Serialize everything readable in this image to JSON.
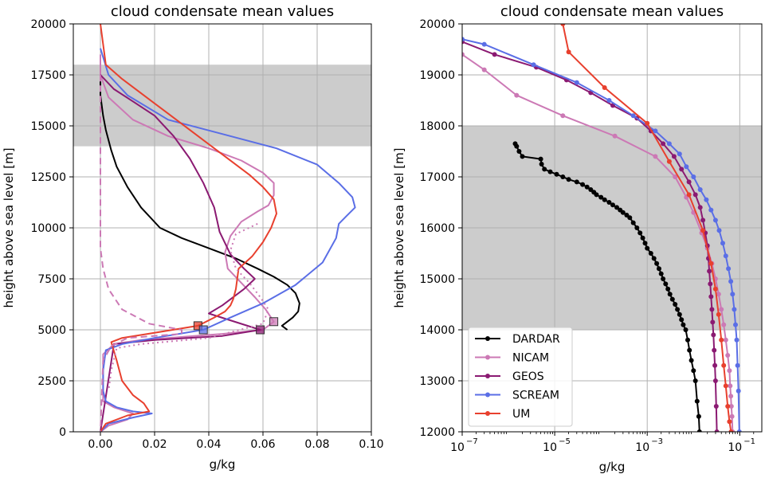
{
  "charts": [
    {
      "title": "cloud condensate mean values",
      "xlabel": "g/kg",
      "ylabel": "height above sea level [m]",
      "xlim": [
        -0.01,
        0.1
      ],
      "ylim": [
        0,
        20000
      ],
      "xticks": [
        "0.00",
        "0.02",
        "0.04",
        "0.06",
        "0.08",
        "0.10"
      ],
      "yticks": [
        "0",
        "2500",
        "5000",
        "7500",
        "10000",
        "12500",
        "15000",
        "17500",
        "20000"
      ],
      "shaded_band": [
        14000,
        18000
      ]
    },
    {
      "title": "cloud condensate mean values",
      "xlabel": "g/kg",
      "ylabel": "height above sea level [m]",
      "xscale": "log",
      "xlim": [
        1e-07,
        0.3
      ],
      "ylim": [
        12000,
        20000
      ],
      "xticks": [
        "10",
        "10",
        "10",
        "10"
      ],
      "xtick_exponents": [
        "−7",
        "−5",
        "−3",
        "−1"
      ],
      "yticks": [
        "12000",
        "13000",
        "14000",
        "15000",
        "16000",
        "17000",
        "18000",
        "19000",
        "20000"
      ],
      "shaded_band": [
        14000,
        18000
      ]
    }
  ],
  "legend": {
    "placement": "lower-left",
    "entries": [
      "DARDAR",
      "NICAM",
      "GEOS",
      "SCREAM",
      "UM"
    ]
  },
  "colors": {
    "DARDAR": "#000000",
    "NICAM": "#cc79b5",
    "GEOS": "#8b1a72",
    "SCREAM": "#5a6ee6",
    "UM": "#e8402e",
    "band": "#cccccc",
    "grid": "#b0b0b0"
  },
  "chart_data": [
    {
      "type": "line",
      "series": [
        {
          "name": "DARDAR",
          "x": [
            0.0,
            0.0,
            0.001,
            0.002,
            0.004,
            0.006,
            0.01,
            0.015,
            0.022,
            0.03,
            0.04,
            0.05,
            0.058,
            0.064,
            0.069,
            0.072,
            0.0735,
            0.073,
            0.071,
            0.067,
            0.069
          ],
          "y": [
            17300,
            16500,
            15500,
            14800,
            13800,
            13000,
            12000,
            11000,
            10000,
            9500,
            9000,
            8500,
            8000,
            7600,
            7200,
            6800,
            6300,
            5900,
            5600,
            5200,
            5000
          ]
        },
        {
          "name": "NICAM",
          "x": [
            0.0,
            0.0,
            0.003,
            0.012,
            0.025,
            0.04,
            0.052,
            0.06,
            0.064,
            0.064,
            0.062,
            0.058,
            0.052,
            0.048,
            0.046,
            0.047,
            0.052,
            0.057,
            0.061,
            0.064,
            0.06,
            0.045,
            0.025,
            0.015,
            0.005,
            0.001,
            0.001,
            0.001,
            0.005,
            0.012,
            0.01,
            0.003,
            0.0
          ],
          "y": [
            18500,
            17500,
            16400,
            15300,
            14500,
            13900,
            13300,
            12700,
            12200,
            11600,
            11100,
            10800,
            10300,
            9600,
            8800,
            8000,
            7300,
            6600,
            6000,
            5400,
            5000,
            4800,
            4600,
            4500,
            4300,
            3800,
            2500,
            1500,
            1200,
            900,
            600,
            300,
            0
          ]
        },
        {
          "name": "GEOS",
          "x": [
            0.0,
            0.005,
            0.012,
            0.02,
            0.027,
            0.033,
            0.038,
            0.042,
            0.044,
            0.048,
            0.053,
            0.057,
            0.053,
            0.045,
            0.04,
            0.059,
            0.045,
            0.02,
            0.005,
            0.0
          ],
          "y": [
            17500,
            16800,
            16200,
            15500,
            14500,
            13400,
            12200,
            11000,
            9800,
            8700,
            8000,
            7500,
            7000,
            6200,
            5800,
            5000,
            4700,
            4500,
            4300,
            0
          ]
        },
        {
          "name": "SCREAM",
          "x": [
            0.0,
            0.003,
            0.01,
            0.025,
            0.045,
            0.065,
            0.08,
            0.088,
            0.093,
            0.094,
            0.091,
            0.088,
            0.087,
            0.082,
            0.072,
            0.06,
            0.048,
            0.038,
            0.02,
            0.008,
            0.002,
            0.001,
            0.001,
            0.002,
            0.006,
            0.012,
            0.019,
            0.012,
            0.003,
            0.0
          ],
          "y": [
            18800,
            17500,
            16500,
            15300,
            14600,
            13900,
            13100,
            12200,
            11500,
            11000,
            10600,
            10200,
            9500,
            8300,
            7200,
            6300,
            5600,
            5000,
            4600,
            4300,
            4000,
            3000,
            2000,
            1500,
            1200,
            1000,
            900,
            700,
            400,
            0
          ]
        },
        {
          "name": "UM",
          "x": [
            0.0,
            0.002,
            0.008,
            0.016,
            0.025,
            0.035,
            0.045,
            0.055,
            0.06,
            0.064,
            0.065,
            0.063,
            0.06,
            0.056,
            0.051,
            0.05,
            0.049,
            0.048,
            0.046,
            0.042,
            0.036,
            0.022,
            0.008,
            0.004,
            0.006,
            0.008,
            0.012,
            0.016,
            0.018,
            0.01,
            0.002,
            0.0
          ],
          "y": [
            20000,
            18000,
            17300,
            16500,
            15600,
            14600,
            13600,
            12600,
            12000,
            11400,
            10700,
            10000,
            9300,
            8600,
            8000,
            7000,
            6500,
            6200,
            5900,
            5600,
            5200,
            4900,
            4600,
            4400,
            3500,
            2500,
            1800,
            1400,
            1000,
            800,
            400,
            0
          ]
        },
        {
          "name": "NICAM (dashed)",
          "x": [
            0.0,
            0.0,
            0.0,
            0.001,
            0.003,
            0.008,
            0.018,
            0.03,
            0.03,
            0.01,
            0.004,
            0.001,
            0.0
          ],
          "y": [
            18000,
            12000,
            9000,
            8000,
            7000,
            6000,
            5300,
            5000,
            4800,
            4600,
            4200,
            3500,
            0
          ]
        },
        {
          "name": "NICAM (dotted)",
          "x": [
            0.058,
            0.05,
            0.048,
            0.05,
            0.055,
            0.059,
            0.062,
            0.06,
            0.04,
            0.015,
            0.006,
            0.004,
            0.003
          ],
          "y": [
            10200,
            9700,
            8900,
            8000,
            7300,
            6600,
            6000,
            5300,
            4600,
            4300,
            4100,
            3000,
            2000
          ]
        }
      ],
      "markers": [
        {
          "series": "UM",
          "x": 0.036,
          "y": 5200
        },
        {
          "series": "SCREAM",
          "x": 0.038,
          "y": 5000
        },
        {
          "series": "GEOS",
          "x": 0.059,
          "y": 5000
        },
        {
          "series": "NICAM",
          "x": 0.064,
          "y": 5400
        }
      ]
    },
    {
      "type": "line",
      "series": [
        {
          "name": "DARDAR",
          "x": [
            1.4e-06,
            1.5e-06,
            1.7e-06,
            2e-06,
            5e-06,
            5.2e-06,
            6e-06,
            8e-06,
            1.1e-05,
            1.5e-05,
            2e-05,
            3e-05,
            4e-05,
            5e-05,
            6e-05,
            7e-05,
            8e-05,
            0.0001,
            0.00012,
            0.00015,
            0.00018,
            0.00022,
            0.00026,
            0.0003,
            0.00036,
            0.00042,
            0.0005,
            0.0006,
            0.0007,
            0.0008,
            0.0009,
            0.001,
            0.0012,
            0.0014,
            0.0016,
            0.0018,
            0.002,
            0.0022,
            0.0025,
            0.0028,
            0.0031,
            0.0035,
            0.004,
            0.0045,
            0.005,
            0.0055,
            0.006,
            0.0068,
            0.0075,
            0.0082,
            0.009,
            0.01,
            0.011,
            0.012,
            0.013,
            0.0135
          ],
          "y": [
            17650,
            17600,
            17500,
            17400,
            17350,
            17250,
            17150,
            17100,
            17050,
            17000,
            16950,
            16900,
            16850,
            16800,
            16750,
            16700,
            16650,
            16600,
            16550,
            16500,
            16450,
            16400,
            16350,
            16300,
            16250,
            16200,
            16100,
            16000,
            15900,
            15800,
            15700,
            15600,
            15500,
            15400,
            15300,
            15200,
            15100,
            15000,
            14900,
            14800,
            14700,
            14600,
            14500,
            14400,
            14300,
            14200,
            14100,
            14000,
            13800,
            13600,
            13400,
            13200,
            13000,
            12600,
            12300,
            12000
          ]
        },
        {
          "name": "NICAM",
          "x": [
            1e-07,
            3e-07,
            1.5e-06,
            1.5e-05,
            0.0002,
            0.0015,
            0.004,
            0.007,
            0.01,
            0.015,
            0.02,
            0.025,
            0.03,
            0.035,
            0.04,
            0.045,
            0.05,
            0.055,
            0.06,
            0.062,
            0.064,
            0.066,
            0.068,
            0.07
          ],
          "y": [
            19400,
            19100,
            18600,
            18200,
            17800,
            17400,
            17000,
            16600,
            16300,
            15900,
            15600,
            15300,
            15000,
            14700,
            14400,
            14100,
            13800,
            13500,
            13200,
            12900,
            12700,
            12500,
            12300,
            12000
          ]
        },
        {
          "name": "GEOS",
          "x": [
            1e-07,
            5e-07,
            4e-06,
            1.8e-05,
            6e-05,
            0.00018,
            0.0006,
            0.0012,
            0.0022,
            0.0038,
            0.0055,
            0.008,
            0.011,
            0.014,
            0.016,
            0.018,
            0.02,
            0.021,
            0.022,
            0.023,
            0.024,
            0.025,
            0.026,
            0.027,
            0.028,
            0.029,
            0.03,
            0.031,
            0.032
          ],
          "y": [
            19650,
            19400,
            19150,
            18900,
            18650,
            18400,
            18150,
            17900,
            17650,
            17400,
            17150,
            16900,
            16650,
            16400,
            16150,
            15900,
            15650,
            15400,
            15150,
            14900,
            14650,
            14400,
            14150,
            13900,
            13600,
            13300,
            13000,
            12500,
            12000
          ]
        },
        {
          "name": "SCREAM",
          "x": [
            1e-07,
            3e-07,
            3.5e-06,
            3e-05,
            0.00015,
            0.0005,
            0.0015,
            0.003,
            0.005,
            0.007,
            0.01,
            0.014,
            0.019,
            0.024,
            0.03,
            0.036,
            0.043,
            0.05,
            0.057,
            0.064,
            0.07,
            0.076,
            0.081,
            0.086,
            0.09,
            0.094,
            0.098
          ],
          "y": [
            19700,
            19600,
            19200,
            18850,
            18500,
            18200,
            17900,
            17650,
            17450,
            17200,
            17000,
            16750,
            16550,
            16350,
            16150,
            15950,
            15700,
            15450,
            15200,
            14950,
            14700,
            14400,
            14100,
            13800,
            13300,
            12800,
            12000
          ]
        },
        {
          "name": "UM",
          "x": [
            1.5e-05,
            2e-05,
            0.00012,
            0.001,
            0.003,
            0.008,
            0.016,
            0.024,
            0.03,
            0.035,
            0.04,
            0.045,
            0.05,
            0.055,
            0.06,
            0.065
          ],
          "y": [
            20000,
            19450,
            18750,
            18050,
            17300,
            16650,
            15950,
            15300,
            14800,
            14300,
            13800,
            13300,
            12900,
            12500,
            12200,
            12000
          ]
        }
      ]
    }
  ]
}
